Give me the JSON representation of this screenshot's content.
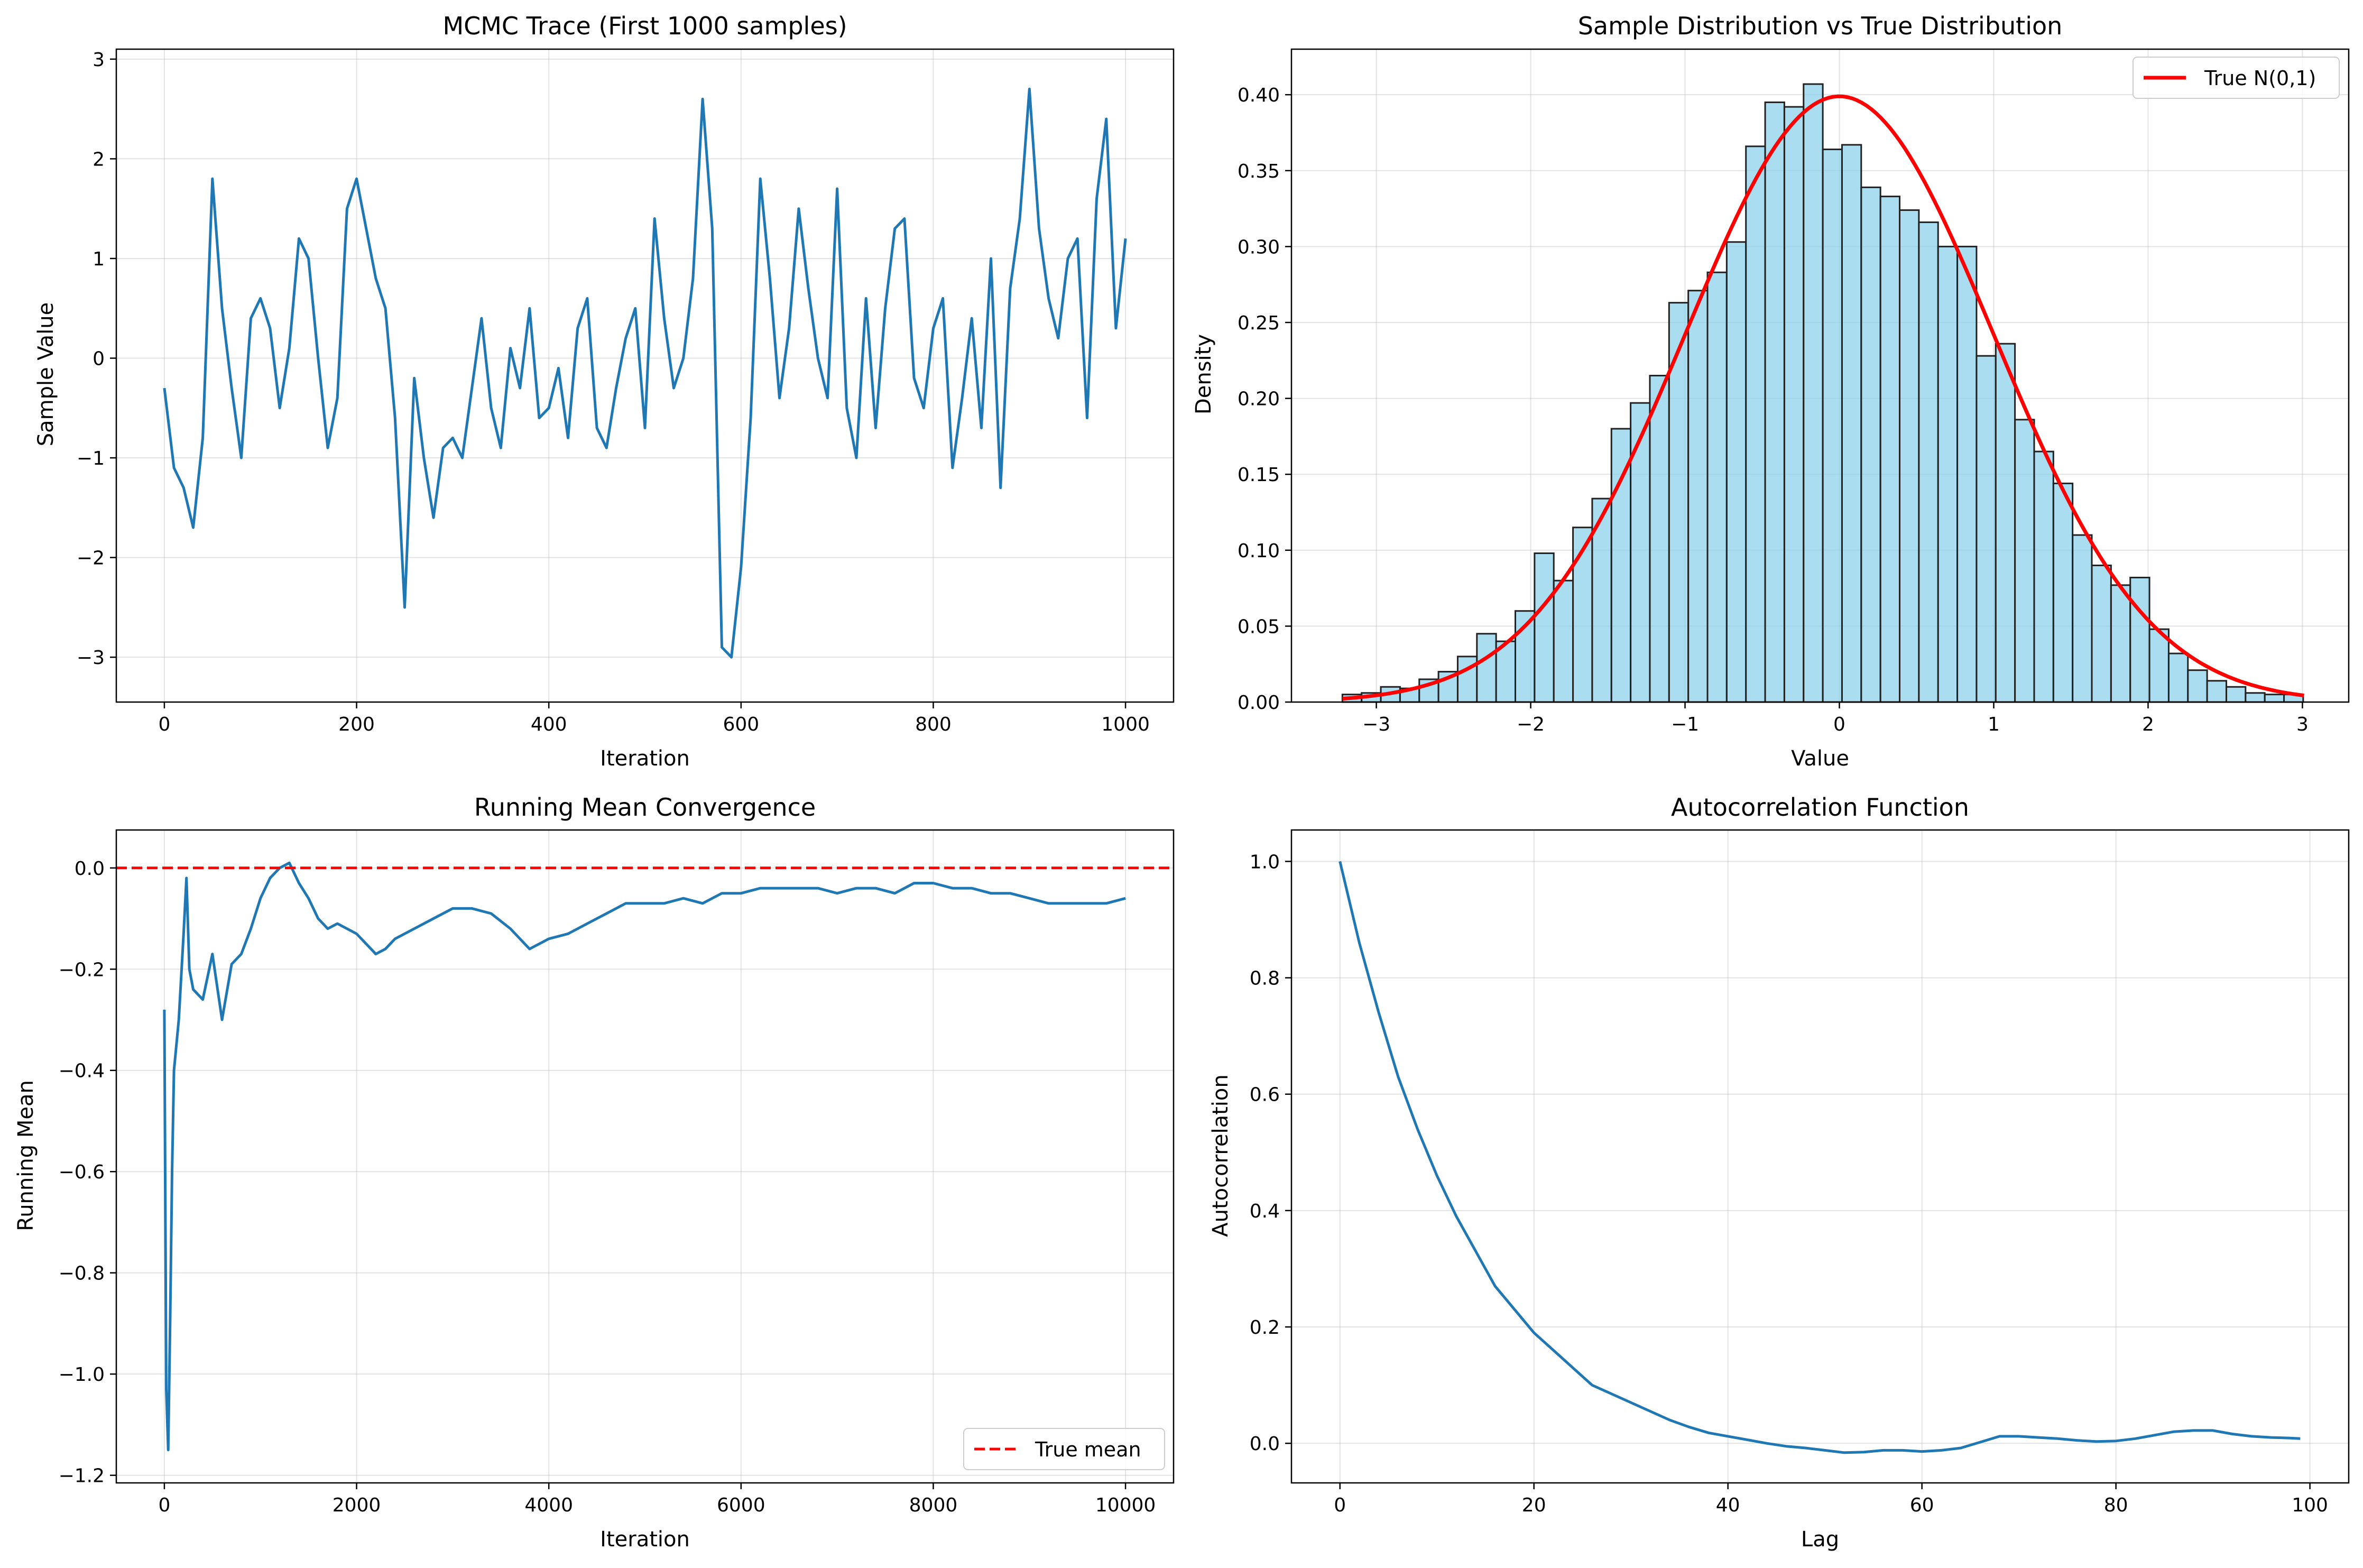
{
  "chart_data": [
    {
      "id": "trace",
      "type": "line",
      "title": "MCMC Trace (First 1000 samples)",
      "xlabel": "Iteration",
      "ylabel": "Sample Value",
      "xlim": [
        -50,
        1050
      ],
      "ylim": [
        -3.45,
        3.1
      ],
      "grid": true,
      "xticks": [
        0,
        200,
        400,
        600,
        800,
        1000
      ],
      "xtick_labels": [
        "0",
        "200",
        "400",
        "600",
        "800",
        "1000"
      ],
      "yticks": [
        -3,
        -2,
        -1,
        0,
        1,
        2,
        3
      ],
      "ytick_labels": [
        "−3",
        "−2",
        "−1",
        "0",
        "1",
        "2",
        "3"
      ],
      "series": [
        {
          "color": "#1f77b4",
          "x": [
            0,
            10,
            20,
            30,
            40,
            50,
            60,
            70,
            80,
            90,
            100,
            110,
            120,
            130,
            140,
            150,
            160,
            170,
            180,
            190,
            200,
            210,
            220,
            230,
            240,
            250,
            260,
            270,
            280,
            290,
            300,
            310,
            320,
            330,
            340,
            350,
            360,
            370,
            380,
            390,
            400,
            410,
            420,
            430,
            440,
            450,
            460,
            470,
            480,
            490,
            500,
            510,
            520,
            530,
            540,
            550,
            560,
            570,
            580,
            590,
            600,
            610,
            620,
            630,
            640,
            650,
            660,
            670,
            680,
            690,
            700,
            710,
            720,
            730,
            740,
            750,
            760,
            770,
            780,
            790,
            800,
            810,
            820,
            830,
            840,
            850,
            860,
            870,
            880,
            890,
            900,
            910,
            920,
            930,
            940,
            950,
            960,
            970,
            980,
            990,
            1000
          ],
          "y": [
            -0.3,
            -1.1,
            -1.3,
            -1.7,
            -0.8,
            1.8,
            0.5,
            -0.3,
            -1.0,
            0.4,
            0.6,
            0.3,
            -0.5,
            0.1,
            1.2,
            1.0,
            0.0,
            -0.9,
            -0.4,
            1.5,
            1.8,
            1.3,
            0.8,
            0.5,
            -0.6,
            -2.5,
            -0.2,
            -1.0,
            -1.6,
            -0.9,
            -0.8,
            -1.0,
            -0.3,
            0.4,
            -0.5,
            -0.9,
            0.1,
            -0.3,
            0.5,
            -0.6,
            -0.5,
            -0.1,
            -0.8,
            0.3,
            0.6,
            -0.7,
            -0.9,
            -0.3,
            0.2,
            0.5,
            -0.7,
            1.4,
            0.4,
            -0.3,
            0.0,
            0.8,
            2.6,
            1.3,
            -2.9,
            -3.0,
            -2.1,
            -0.6,
            1.8,
            0.8,
            -0.4,
            0.3,
            1.5,
            0.7,
            0.0,
            -0.4,
            1.7,
            -0.5,
            -1.0,
            0.6,
            -0.7,
            0.5,
            1.3,
            1.4,
            -0.2,
            -0.5,
            0.3,
            0.6,
            -1.1,
            -0.4,
            0.4,
            -0.7,
            1.0,
            -1.3,
            0.7,
            1.4,
            2.7,
            1.3,
            0.6,
            0.2,
            1.0,
            1.2,
            -0.6,
            1.6,
            2.4,
            0.3,
            1.2
          ]
        }
      ]
    },
    {
      "id": "hist",
      "type": "bar",
      "title": "Sample Distribution vs True Distribution",
      "xlabel": "Value",
      "ylabel": "Density",
      "xlim": [
        -3.55,
        3.3
      ],
      "ylim": [
        0,
        0.43
      ],
      "grid": true,
      "xticks": [
        -3,
        -2,
        -1,
        0,
        1,
        2,
        3
      ],
      "xtick_labels": [
        "−3",
        "−2",
        "−1",
        "0",
        "1",
        "2",
        "3"
      ],
      "yticks": [
        0.0,
        0.05,
        0.1,
        0.15,
        0.2,
        0.25,
        0.3,
        0.35,
        0.4
      ],
      "ytick_labels": [
        "0.00",
        "0.05",
        "0.10",
        "0.15",
        "0.20",
        "0.25",
        "0.30",
        "0.35",
        "0.40"
      ],
      "bins": {
        "start": -3.22,
        "width": 0.1245,
        "values": [
          0.005,
          0.006,
          0.01,
          0.009,
          0.015,
          0.02,
          0.03,
          0.045,
          0.04,
          0.06,
          0.098,
          0.08,
          0.115,
          0.134,
          0.18,
          0.197,
          0.215,
          0.263,
          0.271,
          0.283,
          0.303,
          0.366,
          0.395,
          0.392,
          0.407,
          0.364,
          0.367,
          0.339,
          0.333,
          0.324,
          0.316,
          0.3,
          0.3,
          0.228,
          0.236,
          0.186,
          0.165,
          0.144,
          0.11,
          0.09,
          0.077,
          0.082,
          0.048,
          0.032,
          0.021,
          0.014,
          0.01,
          0.006,
          0.005,
          0.005
        ]
      },
      "bar_color": "#87ceeb",
      "bar_edge": "#222222",
      "series": [
        {
          "name": "True N(0,1)",
          "type": "line",
          "color": "#ff0000",
          "function": "normal_pdf",
          "mean": 0,
          "std": 1,
          "x_range": [
            -3.22,
            3.01
          ]
        }
      ],
      "legend": {
        "position": "top-right",
        "entries": [
          "True N(0,1)"
        ]
      }
    },
    {
      "id": "runmean",
      "type": "line",
      "title": "Running Mean Convergence",
      "xlabel": "Iteration",
      "ylabel": "Running Mean",
      "xlim": [
        -500,
        10500
      ],
      "ylim": [
        -1.215,
        0.075
      ],
      "grid": true,
      "xticks": [
        0,
        2000,
        4000,
        6000,
        8000,
        10000
      ],
      "xtick_labels": [
        "0",
        "2000",
        "4000",
        "6000",
        "8000",
        "10000"
      ],
      "yticks": [
        -1.2,
        -1.0,
        -0.8,
        -0.6,
        -0.4,
        -0.2,
        0.0
      ],
      "ytick_labels": [
        "−1.2",
        "−1.0",
        "−0.8",
        "−0.6",
        "−0.4",
        "−0.2",
        "0.0"
      ],
      "series": [
        {
          "color": "#1f77b4",
          "x": [
            0,
            20,
            40,
            60,
            80,
            100,
            150,
            200,
            230,
            260,
            300,
            400,
            500,
            600,
            700,
            800,
            900,
            1000,
            1100,
            1200,
            1300,
            1400,
            1500,
            1600,
            1700,
            1800,
            1900,
            2000,
            2100,
            2200,
            2300,
            2400,
            2600,
            2800,
            3000,
            3200,
            3400,
            3600,
            3700,
            3800,
            3900,
            4000,
            4200,
            4400,
            4600,
            4800,
            5000,
            5200,
            5400,
            5600,
            5800,
            6000,
            6200,
            6400,
            6600,
            6800,
            7000,
            7200,
            7400,
            7600,
            7800,
            8000,
            8200,
            8400,
            8600,
            8800,
            9000,
            9200,
            9400,
            9600,
            9800,
            10000
          ],
          "y": [
            -0.28,
            -1.03,
            -1.15,
            -0.9,
            -0.6,
            -0.4,
            -0.3,
            -0.13,
            -0.02,
            -0.2,
            -0.24,
            -0.26,
            -0.17,
            -0.3,
            -0.19,
            -0.17,
            -0.12,
            -0.06,
            -0.02,
            0.0,
            0.01,
            -0.03,
            -0.06,
            -0.1,
            -0.12,
            -0.11,
            -0.12,
            -0.13,
            -0.15,
            -0.17,
            -0.16,
            -0.14,
            -0.12,
            -0.1,
            -0.08,
            -0.08,
            -0.09,
            -0.12,
            -0.14,
            -0.16,
            -0.15,
            -0.14,
            -0.13,
            -0.11,
            -0.09,
            -0.07,
            -0.07,
            -0.07,
            -0.06,
            -0.07,
            -0.05,
            -0.05,
            -0.04,
            -0.04,
            -0.04,
            -0.04,
            -0.05,
            -0.04,
            -0.04,
            -0.05,
            -0.03,
            -0.03,
            -0.04,
            -0.04,
            -0.05,
            -0.05,
            -0.06,
            -0.07,
            -0.07,
            -0.07,
            -0.07,
            -0.06
          ]
        },
        {
          "name": "True mean",
          "type": "hline",
          "y": 0,
          "color": "#ff0000",
          "dash": true
        }
      ],
      "legend": {
        "position": "bottom-right",
        "entries": [
          "True mean"
        ]
      }
    },
    {
      "id": "acf",
      "type": "line",
      "title": "Autocorrelation Function",
      "xlabel": "Lag",
      "ylabel": "Autocorrelation",
      "xlim": [
        -5,
        104
      ],
      "ylim": [
        -0.068,
        1.054
      ],
      "grid": true,
      "xticks": [
        0,
        20,
        40,
        60,
        80,
        100
      ],
      "xtick_labels": [
        "0",
        "20",
        "40",
        "60",
        "80",
        "100"
      ],
      "yticks": [
        0.0,
        0.2,
        0.4,
        0.6,
        0.8,
        1.0
      ],
      "ytick_labels": [
        "0.0",
        "0.2",
        "0.4",
        "0.6",
        "0.8",
        "1.0"
      ],
      "series": [
        {
          "color": "#1f77b4",
          "x": [
            0,
            2,
            4,
            6,
            8,
            10,
            12,
            14,
            16,
            18,
            20,
            22,
            24,
            26,
            28,
            30,
            32,
            34,
            36,
            38,
            40,
            42,
            44,
            46,
            48,
            50,
            52,
            54,
            56,
            58,
            60,
            62,
            64,
            66,
            68,
            70,
            72,
            74,
            76,
            78,
            80,
            82,
            84,
            86,
            88,
            90,
            92,
            94,
            96,
            98,
            99
          ],
          "y": [
            1.0,
            0.86,
            0.74,
            0.63,
            0.54,
            0.46,
            0.39,
            0.33,
            0.27,
            0.23,
            0.19,
            0.16,
            0.13,
            0.1,
            0.085,
            0.07,
            0.055,
            0.04,
            0.028,
            0.018,
            0.012,
            0.006,
            0.0,
            -0.005,
            -0.008,
            -0.012,
            -0.016,
            -0.015,
            -0.012,
            -0.012,
            -0.014,
            -0.012,
            -0.008,
            0.002,
            0.012,
            0.012,
            0.01,
            0.008,
            0.005,
            0.003,
            0.004,
            0.008,
            0.014,
            0.02,
            0.022,
            0.022,
            0.016,
            0.012,
            0.01,
            0.009,
            0.008
          ]
        }
      ]
    }
  ]
}
